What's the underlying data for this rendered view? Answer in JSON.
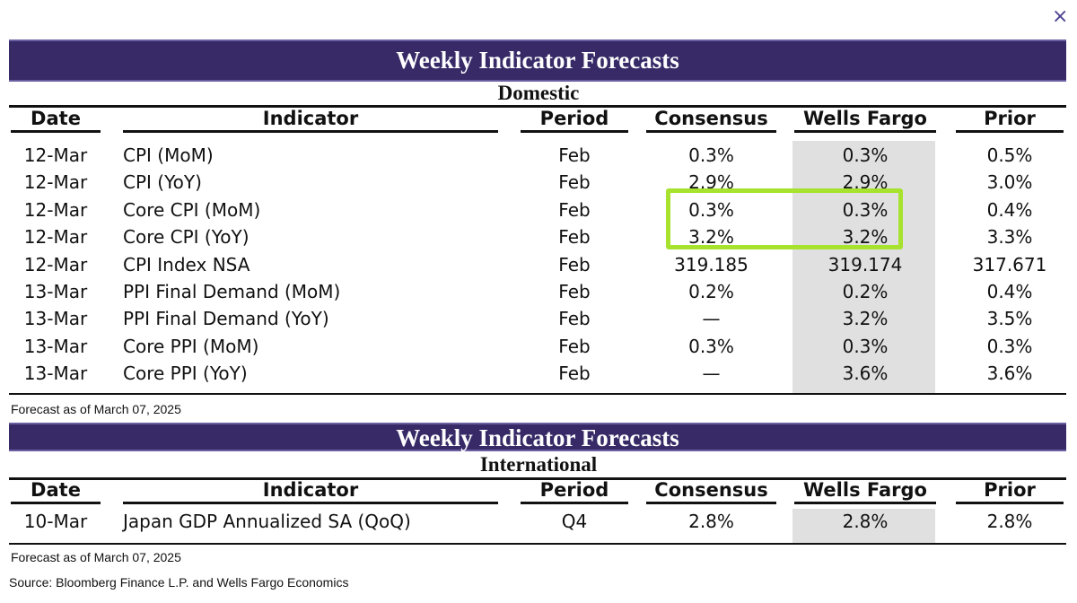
{
  "close_icon": "×",
  "columns": [
    "Date",
    "Indicator",
    "Period",
    "Consensus",
    "Wells Fargo",
    "Prior"
  ],
  "domestic": {
    "title": "Weekly Indicator Forecasts",
    "subtitle": "Domestic",
    "rows": [
      [
        "12-Mar",
        "CPI (MoM)",
        "Feb",
        "0.3%",
        "0.3%",
        "0.5%"
      ],
      [
        "12-Mar",
        "CPI (YoY)",
        "Feb",
        "2.9%",
        "2.9%",
        "3.0%"
      ],
      [
        "12-Mar",
        "Core CPI (MoM)",
        "Feb",
        "0.3%",
        "0.3%",
        "0.4%"
      ],
      [
        "12-Mar",
        "Core CPI (YoY)",
        "Feb",
        "3.2%",
        "3.2%",
        "3.3%"
      ],
      [
        "12-Mar",
        "CPI Index NSA",
        "Feb",
        "319.185",
        "319.174",
        "317.671"
      ],
      [
        "13-Mar",
        "PPI Final Demand (MoM)",
        "Feb",
        "0.2%",
        "0.2%",
        "0.4%"
      ],
      [
        "13-Mar",
        "PPI Final Demand (YoY)",
        "Feb",
        "—",
        "3.2%",
        "3.5%"
      ],
      [
        "13-Mar",
        "Core PPI (MoM)",
        "Feb",
        "0.3%",
        "0.3%",
        "0.3%"
      ],
      [
        "13-Mar",
        "Core PPI (YoY)",
        "Feb",
        "—",
        "3.6%",
        "3.6%"
      ]
    ],
    "footnote": "Forecast as of March 07, 2025"
  },
  "international": {
    "title": "Weekly Indicator Forecasts",
    "subtitle": "International",
    "rows": [
      [
        "10-Mar",
        "Japan GDP Annualized SA (QoQ)",
        "Q4",
        "2.8%",
        "2.8%",
        "2.8%"
      ]
    ],
    "footnote": "Forecast as of March 07, 2025"
  },
  "source": "Source: Bloomberg Finance L.P. and Wells Fargo Economics",
  "colors": {
    "header_bar": "#372a67",
    "highlight": "#a6e22e",
    "wf_shade": "#e0e0e0"
  }
}
